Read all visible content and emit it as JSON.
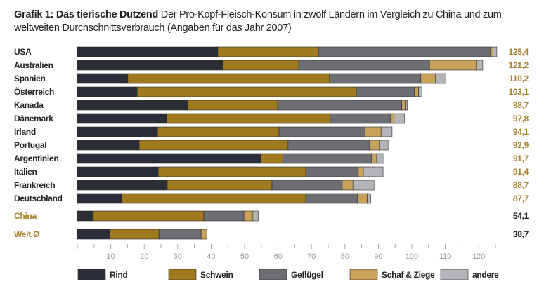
{
  "title": {
    "bold": "Grafik 1: Das tierische Dutzend",
    "text": "Der Pro-Kopf-Fleisch-Konsum in zwölf Ländern im Vergleich zu China und zum weltweiten Durchschnittsverbrauch (Angaben für das Jahr 2007)"
  },
  "chart_data": {
    "type": "bar",
    "orientation": "horizontal",
    "stacked": true,
    "title": "Grafik 1: Das tierische Dutzend",
    "xlim": [
      0,
      125
    ],
    "x_ticks": [
      10,
      20,
      30,
      40,
      50,
      60,
      70,
      80,
      90,
      100,
      110,
      120
    ],
    "grid": false,
    "legend_position": "bottom",
    "categories": [
      "USA",
      "Australien",
      "Spanien",
      "Österreich",
      "Kanada",
      "Dänemark",
      "Irland",
      "Portugal",
      "Argentinien",
      "Italien",
      "Frankreich",
      "Deutschland",
      "China",
      "Welt Ø"
    ],
    "highlight_categories": [
      "China",
      "Welt Ø"
    ],
    "totals": [
      "125,4",
      "121,2",
      "110,2",
      "103,1",
      "98,7",
      "97,8",
      "94,1",
      "92,9",
      "91,7",
      "91,4",
      "88,7",
      "87,7",
      "54,1",
      "38,7"
    ],
    "series": [
      {
        "name": "Rind",
        "color": "#2b2e36",
        "values": [
          42.0,
          43.5,
          15.1,
          17.9,
          33.0,
          26.7,
          24.0,
          18.5,
          54.8,
          24.2,
          26.9,
          13.2,
          4.8,
          9.7
        ]
      },
      {
        "name": "Schwein",
        "color": "#a07a1f",
        "values": [
          30.1,
          22.7,
          60.3,
          65.5,
          26.9,
          48.9,
          36.3,
          44.5,
          6.7,
          44.1,
          31.3,
          55.1,
          33.0,
          14.7
        ]
      },
      {
        "name": "Geflügel",
        "color": "#6d6e73",
        "values": [
          51.4,
          39.1,
          27.3,
          17.4,
          37.1,
          18.1,
          25.7,
          24.4,
          26.5,
          15.7,
          21.0,
          15.5,
          12.0,
          12.6
        ]
      },
      {
        "name": "Schaf & Ziege",
        "color": "#c9a25a",
        "values": [
          0.8,
          14.0,
          4.3,
          1.2,
          1.0,
          1.0,
          4.8,
          2.9,
          1.5,
          1.5,
          3.2,
          2.9,
          2.7,
          1.7
        ]
      },
      {
        "name": "andere",
        "color": "#b4b5b8",
        "values": [
          1.1,
          1.9,
          3.2,
          1.1,
          0.7,
          3.1,
          3.3,
          2.6,
          2.2,
          5.9,
          6.3,
          1.0,
          1.6,
          0.0
        ]
      }
    ]
  },
  "colors": {
    "accent": "#a8802a",
    "text": "#222222"
  }
}
